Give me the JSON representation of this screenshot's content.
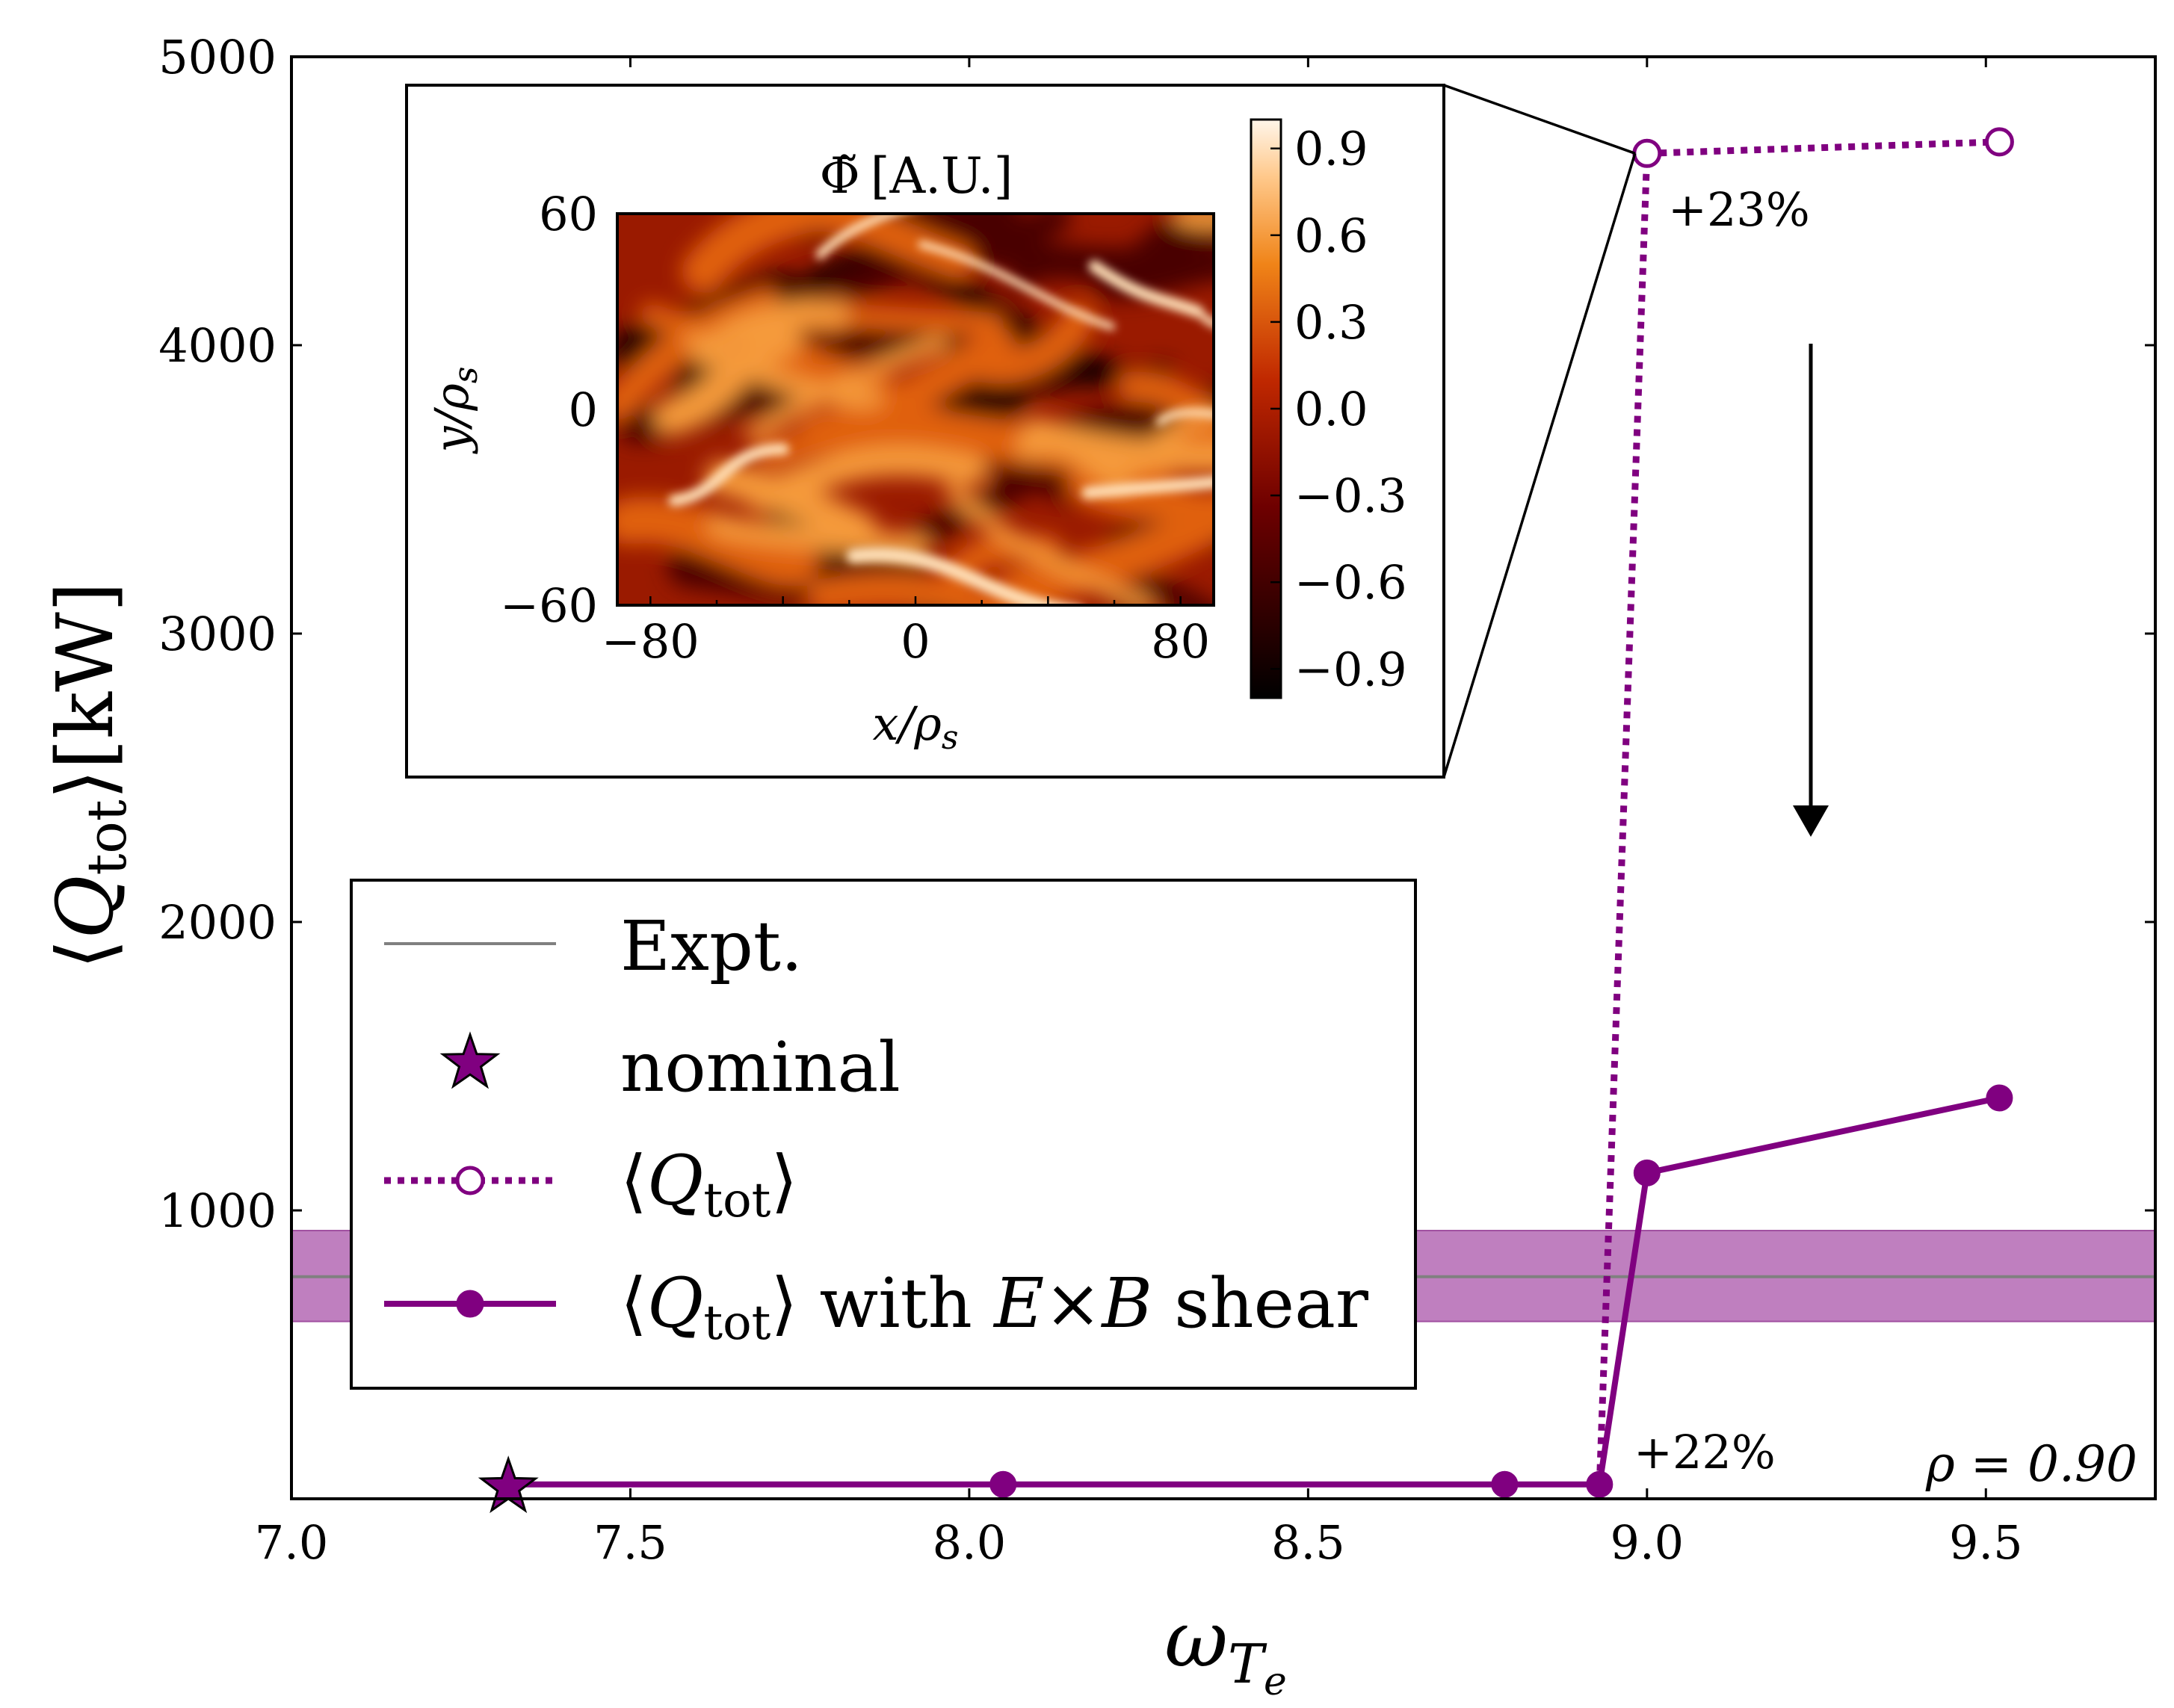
{
  "chart_data": {
    "type": "line",
    "title": "",
    "xlabel": "ω_Te",
    "xlabel_main": "ω",
    "xlabel_sub": "T",
    "xlabel_subsub": "e",
    "ylabel": "⟨Q_tot⟩[kW]",
    "ylabel_open": "⟨",
    "ylabel_q": "Q",
    "ylabel_sub": "tot",
    "ylabel_close": "⟩[kW]",
    "xlim": [
      7.0,
      9.75
    ],
    "ylim": [
      0,
      5000
    ],
    "xticks": [
      7.0,
      7.5,
      8.0,
      8.5,
      9.0,
      9.5
    ],
    "xtick_labels": [
      "7.0",
      "7.5",
      "8.0",
      "8.5",
      "9.0",
      "9.5"
    ],
    "yticks": [
      1000,
      2000,
      3000,
      4000,
      5000
    ],
    "ytick_labels": [
      "1000",
      "2000",
      "3000",
      "4000",
      "5000"
    ],
    "expt": {
      "value": 770,
      "band": [
        615,
        930
      ],
      "line_color": "#808080",
      "band_color": "#bf7fbf"
    },
    "series": [
      {
        "name": "⟨Q_tot⟩",
        "style": "dotted-open-circle",
        "color": "#800080",
        "x": [
          8.93,
          9.0,
          9.52
        ],
        "y": [
          50,
          4665,
          4705
        ]
      },
      {
        "name": "⟨Q_tot⟩ with E×B shear",
        "style": "solid-filled-circle",
        "color": "#800080",
        "x": [
          7.32,
          8.05,
          8.79,
          8.93,
          9.0,
          9.52
        ],
        "y": [
          50,
          50,
          50,
          50,
          1130,
          1390
        ]
      }
    ],
    "nominal": {
      "x": 7.32,
      "y": 50,
      "color": "#800080"
    },
    "annotations": {
      "plus23": "+23%",
      "plus22": "+22%",
      "rho_label": "ρ = 0.90"
    },
    "legend": {
      "position": "center-left",
      "entries": [
        {
          "label": "Expt."
        },
        {
          "label": "nominal"
        },
        {
          "label_open": "⟨",
          "label_q": "Q",
          "label_sub": "tot",
          "label_close": "⟩"
        },
        {
          "label_open": "⟨",
          "label_q": "Q",
          "label_sub": "tot",
          "label_close": "⟩ with ",
          "label_e": "E",
          "label_x": "×",
          "label_b": "B",
          "label_tail": " shear"
        }
      ]
    },
    "inset": {
      "title": "Φ̃ [A.U.]",
      "title_sym": "Φ̃",
      "title_unit": "[A.U.]",
      "xlabel": "x/ρs",
      "xlabel_x": "x",
      "xlabel_rho": "/ρ",
      "xlabel_sub": "s",
      "ylabel": "y/ρs",
      "ylabel_y": "y",
      "ylabel_rho": "/ρ",
      "ylabel_sub": "s",
      "xlim": [
        -90,
        90
      ],
      "ylim": [
        -60,
        60
      ],
      "xtick_labels": [
        "−80",
        "0",
        "80"
      ],
      "xticks": [
        -80,
        0,
        80
      ],
      "ytick_labels": [
        "60",
        "0",
        "−60"
      ],
      "yticks": [
        60,
        0,
        -60
      ],
      "colorbar_ticks": [
        0.9,
        0.6,
        0.3,
        0.0,
        -0.3,
        -0.6,
        -0.9
      ],
      "colorbar_labels": [
        "0.9",
        "0.6",
        "0.3",
        "0.0",
        "−0.3",
        "−0.6",
        "−0.9"
      ],
      "colorbar_range": [
        -1.0,
        1.0
      ],
      "colormap": "gist_heat",
      "zoom_source": {
        "x": 9.0,
        "y": 4665
      }
    }
  }
}
